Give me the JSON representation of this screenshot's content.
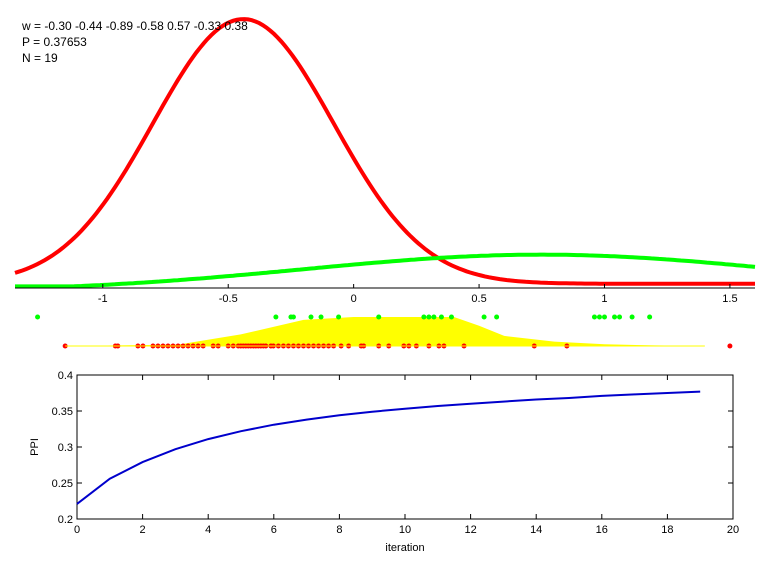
{
  "info": {
    "w_line": "w = -0.30  -0.44  -0.89  -0.58  0.57  -0.33  0.38",
    "p_line": "P = 0.37653",
    "n_line": "N = 19"
  },
  "colors": {
    "red": "#ff0000",
    "green": "#00ff00",
    "yellow": "#ffff00",
    "blue": "#0000cc",
    "axis": "#000000"
  },
  "chart_data": [
    {
      "type": "line",
      "xlim": [
        -1.35,
        1.6
      ],
      "ylim": [
        0,
        1.02
      ],
      "xticks": [
        "-1",
        "-0.5",
        "0",
        "0.5",
        "1",
        "1.5"
      ],
      "xtick_values": [
        -1,
        -0.5,
        0,
        0.5,
        1,
        1.5
      ],
      "series": [
        {
          "color": "red",
          "mean": -0.44,
          "sd": 0.36,
          "peak": 1.0,
          "baseline": 0.0
        },
        {
          "color": "green",
          "mean": 0.75,
          "sd": 0.95,
          "peak": 0.14,
          "baseline": -0.03
        }
      ]
    },
    {
      "type": "scatter",
      "xlim": [
        -1.35,
        1.6
      ],
      "green_points": [
        -1.26,
        -0.31,
        -0.25,
        -0.24,
        -0.17,
        -0.13,
        -0.06,
        0.1,
        0.28,
        0.3,
        0.32,
        0.35,
        0.39,
        0.52,
        0.57,
        0.96,
        0.98,
        1.0,
        1.04,
        1.06,
        1.11,
        1.18
      ],
      "red_points": [
        -1.15,
        -0.95,
        -0.94,
        -0.86,
        -0.84,
        -0.8,
        -0.78,
        -0.76,
        -0.74,
        -0.72,
        -0.7,
        -0.68,
        -0.66,
        -0.64,
        -0.62,
        -0.6,
        -0.56,
        -0.54,
        -0.5,
        -0.48,
        -0.46,
        -0.45,
        -0.44,
        -0.43,
        -0.42,
        -0.41,
        -0.4,
        -0.39,
        -0.38,
        -0.37,
        -0.36,
        -0.35,
        -0.33,
        -0.32,
        -0.3,
        -0.28,
        -0.26,
        -0.24,
        -0.22,
        -0.2,
        -0.18,
        -0.16,
        -0.14,
        -0.12,
        -0.1,
        -0.08,
        -0.05,
        -0.02,
        0.03,
        0.04,
        0.1,
        0.14,
        0.2,
        0.22,
        0.25,
        0.3,
        0.34,
        0.36,
        0.44,
        0.72,
        0.85,
        1.5
      ],
      "yellow_band": {
        "x": [
          -1.15,
          -0.7,
          -0.45,
          -0.2,
          0.0,
          0.2,
          0.4,
          0.5,
          0.6,
          0.8,
          1.0,
          1.2,
          1.4
        ],
        "height": [
          0.0,
          0.05,
          0.4,
          0.9,
          1.0,
          1.0,
          1.0,
          0.7,
          0.35,
          0.15,
          0.06,
          0.02,
          0.0
        ]
      }
    },
    {
      "type": "line",
      "xlabel": "iteration",
      "ylabel": "PPI",
      "xlim": [
        0,
        20
      ],
      "ylim": [
        0.2,
        0.4
      ],
      "xticks": [
        "0",
        "2",
        "4",
        "6",
        "8",
        "10",
        "12",
        "14",
        "16",
        "18",
        "20"
      ],
      "xtick_values": [
        0,
        2,
        4,
        6,
        8,
        10,
        12,
        14,
        16,
        18,
        20
      ],
      "yticks": [
        "0.2",
        "0.25",
        "0.3",
        "0.35",
        "0.4"
      ],
      "ytick_values": [
        0.2,
        0.25,
        0.3,
        0.35,
        0.4
      ],
      "series": [
        {
          "color": "blue",
          "x": [
            0,
            1,
            2,
            3,
            4,
            5,
            6,
            7,
            8,
            9,
            10,
            11,
            12,
            13,
            14,
            15,
            16,
            17,
            18,
            19
          ],
          "y": [
            0.221,
            0.256,
            0.279,
            0.297,
            0.311,
            0.322,
            0.331,
            0.338,
            0.344,
            0.349,
            0.353,
            0.357,
            0.36,
            0.363,
            0.366,
            0.368,
            0.371,
            0.373,
            0.375,
            0.377
          ]
        }
      ]
    }
  ]
}
